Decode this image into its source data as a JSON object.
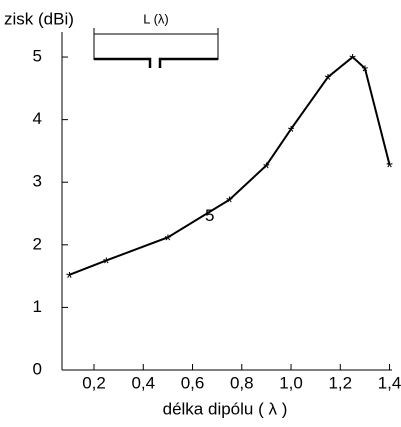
{
  "chart_data": {
    "type": "line",
    "y_label": "zisk (dBi)",
    "x_label": "délka dipólu ( λ )",
    "inset_label": "L (λ)",
    "annotation": {
      "text": "5",
      "x": 0.67,
      "y": 2.45
    },
    "x": [
      0.1,
      0.25,
      0.5,
      0.75,
      0.9,
      1.0,
      1.15,
      1.25,
      1.3,
      1.4
    ],
    "series": [
      {
        "color": "#000000",
        "values": [
          1.52,
          1.75,
          2.12,
          2.72,
          3.27,
          3.85,
          4.68,
          5.0,
          4.82,
          3.28
        ]
      }
    ],
    "xlim": [
      0.07,
      1.41
    ],
    "ylim": [
      0,
      5.4
    ],
    "xticks": [
      {
        "value": 0.2,
        "label": "0,2"
      },
      {
        "value": 0.4,
        "label": "0,4"
      },
      {
        "value": 0.6,
        "label": "0,6"
      },
      {
        "value": 0.8,
        "label": "0,8"
      },
      {
        "value": 1.0,
        "label": "1,0"
      },
      {
        "value": 1.2,
        "label": "1,2"
      },
      {
        "value": 1.4,
        "label": "1,4"
      }
    ],
    "yticks": [
      0,
      1,
      2,
      3,
      4,
      5
    ],
    "grid": false
  }
}
